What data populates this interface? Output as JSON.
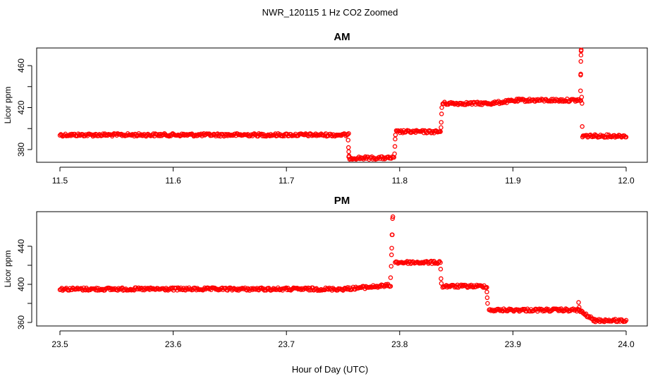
{
  "figure": {
    "title": "NWR_120115  1 Hz CO2 Zoomed",
    "xlabel": "Hour of Day (UTC)"
  },
  "colors": {
    "points": "#ff0000",
    "axes": "#000000"
  },
  "chart_data": [
    {
      "type": "scatter",
      "title": "AM",
      "ylabel": "Licor ppm",
      "xlim": [
        11.5,
        12.0
      ],
      "ylim": [
        366,
        478
      ],
      "xticks": [
        "11.5",
        "11.6",
        "11.7",
        "11.8",
        "11.9",
        "12.0"
      ],
      "yticks": [
        "380",
        "420",
        "460"
      ],
      "marker": "open-circle",
      "segments": [
        {
          "x0": 11.5,
          "x1": 11.755,
          "y0": 394,
          "y1": 394
        },
        {
          "x0": 11.755,
          "x1": 11.795,
          "y0": 372,
          "y1": 372
        },
        {
          "x0": 11.797,
          "x1": 11.836,
          "y0": 397,
          "y1": 397
        },
        {
          "x0": 11.838,
          "x1": 11.88,
          "y0": 424,
          "y1": 424
        },
        {
          "x0": 11.88,
          "x1": 11.905,
          "y0": 424,
          "y1": 427
        },
        {
          "x0": 11.905,
          "x1": 11.96,
          "y0": 427,
          "y1": 427
        },
        {
          "x0": 11.962,
          "x1": 12.0,
          "y0": 393,
          "y1": 393
        }
      ],
      "points": [
        [
          11.7545,
          389
        ],
        [
          11.7548,
          382
        ],
        [
          11.755,
          378
        ],
        [
          11.7553,
          374
        ],
        [
          11.7955,
          376
        ],
        [
          11.7958,
          383
        ],
        [
          11.796,
          390
        ],
        [
          11.7963,
          394
        ],
        [
          11.8365,
          401
        ],
        [
          11.8367,
          406
        ],
        [
          11.837,
          414
        ],
        [
          11.8372,
          420
        ],
        [
          11.9597,
          436
        ],
        [
          11.9598,
          451
        ],
        [
          11.9599,
          452
        ],
        [
          11.96,
          464
        ],
        [
          11.9601,
          470
        ],
        [
          11.9602,
          474
        ],
        [
          11.9603,
          475
        ],
        [
          11.9607,
          430
        ],
        [
          11.961,
          424
        ],
        [
          11.9612,
          402
        ],
        [
          11.9615,
          392
        ]
      ]
    },
    {
      "type": "scatter",
      "title": "PM",
      "ylabel": "Licor ppm",
      "xlim": [
        23.5,
        24.0
      ],
      "ylim": [
        356,
        478
      ],
      "xticks": [
        "23.5",
        "23.6",
        "23.7",
        "23.8",
        "23.9",
        "24.0"
      ],
      "yticks": [
        "360",
        "400",
        "440"
      ],
      "marker": "open-circle",
      "segments": [
        {
          "x0": 23.5,
          "x1": 23.75,
          "y0": 395,
          "y1": 395
        },
        {
          "x0": 23.75,
          "x1": 23.792,
          "y0": 395,
          "y1": 399
        },
        {
          "x0": 23.796,
          "x1": 23.836,
          "y0": 423,
          "y1": 423
        },
        {
          "x0": 23.838,
          "x1": 23.877,
          "y0": 398,
          "y1": 398
        },
        {
          "x0": 23.879,
          "x1": 23.958,
          "y0": 373,
          "y1": 373
        },
        {
          "x0": 23.958,
          "x1": 23.972,
          "y0": 373,
          "y1": 362
        },
        {
          "x0": 23.972,
          "x1": 24.0,
          "y0": 362,
          "y1": 362
        }
      ],
      "points": [
        [
          23.792,
          407
        ],
        [
          23.7925,
          419
        ],
        [
          23.7928,
          431
        ],
        [
          23.793,
          438
        ],
        [
          23.7932,
          452
        ],
        [
          23.7935,
          452
        ],
        [
          23.7937,
          469
        ],
        [
          23.794,
          471
        ],
        [
          23.8362,
          416
        ],
        [
          23.8365,
          406
        ],
        [
          23.8368,
          401
        ],
        [
          23.877,
          392
        ],
        [
          23.8773,
          386
        ],
        [
          23.8776,
          380
        ],
        [
          23.958,
          381
        ],
        [
          23.9585,
          376
        ]
      ]
    }
  ]
}
